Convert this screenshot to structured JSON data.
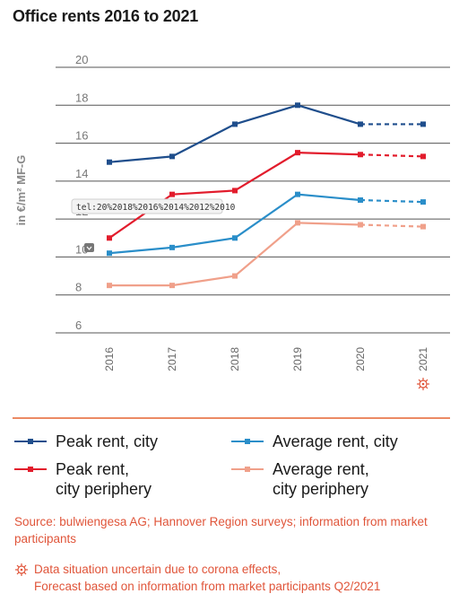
{
  "title": "Office rents 2016 to 2021",
  "chart_data": {
    "type": "line",
    "x": [
      "2016",
      "2017",
      "2018",
      "2019",
      "2020",
      "2021"
    ],
    "ylabel": "in €/m² MF-G",
    "ylim": [
      6,
      20
    ],
    "yticks": [
      6,
      8,
      10,
      12,
      14,
      16,
      18,
      20
    ],
    "grid": true,
    "forecast_from_index": 4,
    "series": [
      {
        "name": "Peak rent, city",
        "color": "#1f4e8c",
        "values": [
          15.0,
          15.3,
          17.0,
          18.0,
          17.0,
          17.0
        ]
      },
      {
        "name": "Peak rent,\ncity periphery",
        "color": "#e21c2c",
        "values": [
          11.0,
          13.3,
          13.5,
          15.5,
          15.4,
          15.3
        ]
      },
      {
        "name": "Average rent, city",
        "color": "#2a8ec9",
        "values": [
          10.2,
          10.5,
          11.0,
          13.3,
          13.0,
          12.9
        ]
      },
      {
        "name": "Average rent,\ncity periphery",
        "color": "#f0a08a",
        "values": [
          8.5,
          8.5,
          9.0,
          11.8,
          11.7,
          11.6
        ]
      }
    ],
    "tooltip": "tel:20%2018%2016%2014%2012%2010",
    "forecast_marker": "virus-icon"
  },
  "legend": {
    "peak_city": "Peak rent, city",
    "avg_city": "Average rent, city",
    "peak_periphery_1": "Peak rent,",
    "peak_periphery_2": "city periphery",
    "avg_periphery_1": "Average rent,",
    "avg_periphery_2": "city periphery"
  },
  "source": "Source: bulwiengesa AG; Hannover Region surveys; information from market participants",
  "note": {
    "line1": "Data situation uncertain due to corona effects,",
    "line2": "Forecast based on information from market participants Q2/2021"
  },
  "colors": {
    "accent": "#e0553a",
    "divider": "#ec8a64"
  }
}
